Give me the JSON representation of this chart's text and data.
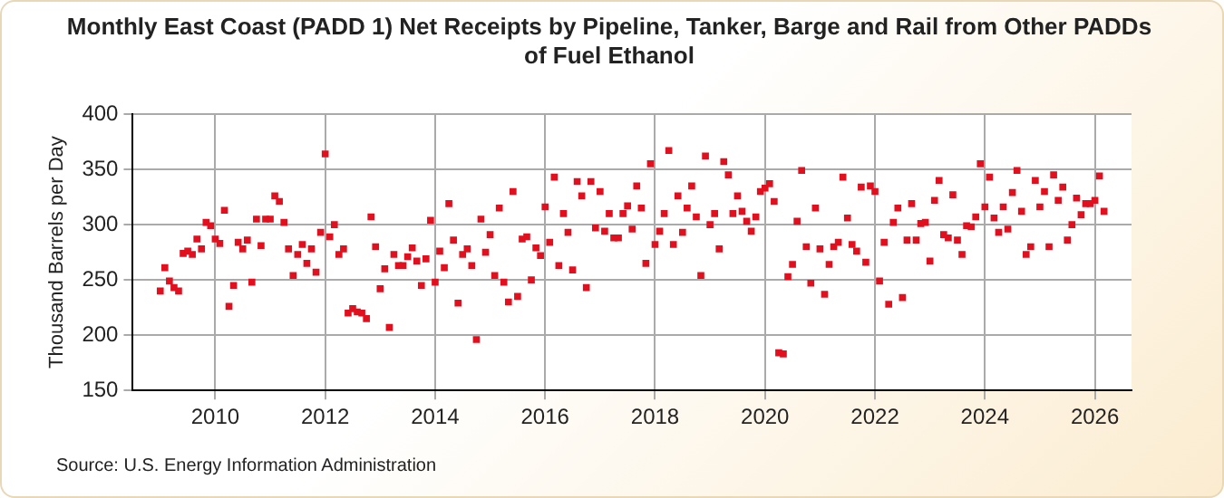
{
  "chart_data": {
    "type": "scatter",
    "title": "Monthly East Coast (PADD 1) Net Receipts by Pipeline, Tanker, Barge and Rail from Other PADDs of Fuel Ethanol",
    "ylabel": "Thousand Barrels per Day",
    "annotations": [
      "Source: U.S. Energy Information Administration"
    ],
    "x": [
      "2009-01",
      "2009-02",
      "2009-03",
      "2009-04",
      "2009-05",
      "2009-06",
      "2009-07",
      "2009-08",
      "2009-09",
      "2009-10",
      "2009-11",
      "2009-12",
      "2010-01",
      "2010-02",
      "2010-03",
      "2010-04",
      "2010-05",
      "2010-06",
      "2010-07",
      "2010-08",
      "2010-09",
      "2010-10",
      "2010-11",
      "2010-12",
      "2011-01",
      "2011-02",
      "2011-03",
      "2011-04",
      "2011-05",
      "2011-06",
      "2011-07",
      "2011-08",
      "2011-09",
      "2011-10",
      "2011-11",
      "2011-12",
      "2012-01",
      "2012-02",
      "2012-03",
      "2012-04",
      "2012-05",
      "2012-06",
      "2012-07",
      "2012-08",
      "2012-09",
      "2012-10",
      "2012-11",
      "2012-12",
      "2013-01",
      "2013-02",
      "2013-03",
      "2013-04",
      "2013-05",
      "2013-06",
      "2013-07",
      "2013-08",
      "2013-09",
      "2013-10",
      "2013-11",
      "2013-12",
      "2014-01",
      "2014-02",
      "2014-03",
      "2014-04",
      "2014-05",
      "2014-06",
      "2014-07",
      "2014-08",
      "2014-09",
      "2014-10",
      "2014-11",
      "2014-12",
      "2015-01",
      "2015-02",
      "2015-03",
      "2015-04",
      "2015-05",
      "2015-06",
      "2015-07",
      "2015-08",
      "2015-09",
      "2015-10",
      "2015-11",
      "2015-12",
      "2016-01",
      "2016-02",
      "2016-03",
      "2016-04",
      "2016-05",
      "2016-06",
      "2016-07",
      "2016-08",
      "2016-09",
      "2016-10",
      "2016-11",
      "2016-12",
      "2017-01",
      "2017-02",
      "2017-03",
      "2017-04",
      "2017-05",
      "2017-06",
      "2017-07",
      "2017-08",
      "2017-09",
      "2017-10",
      "2017-11",
      "2017-12",
      "2018-01",
      "2018-02",
      "2018-03",
      "2018-04",
      "2018-05",
      "2018-06",
      "2018-07",
      "2018-08",
      "2018-09",
      "2018-10",
      "2018-11",
      "2018-12",
      "2019-01",
      "2019-02",
      "2019-03",
      "2019-04",
      "2019-05",
      "2019-06",
      "2019-07",
      "2019-08",
      "2019-09",
      "2019-10",
      "2019-11",
      "2019-12",
      "2020-01",
      "2020-02",
      "2020-03",
      "2020-04",
      "2020-05",
      "2020-06",
      "2020-07",
      "2020-08",
      "2020-09",
      "2020-10",
      "2020-11",
      "2020-12",
      "2021-01",
      "2021-02",
      "2021-03",
      "2021-04",
      "2021-05",
      "2021-06",
      "2021-07",
      "2021-08",
      "2021-09",
      "2021-10",
      "2021-11",
      "2021-12",
      "2022-01",
      "2022-02",
      "2022-03",
      "2022-04",
      "2022-05",
      "2022-06",
      "2022-07",
      "2022-08",
      "2022-09",
      "2022-10",
      "2022-11",
      "2022-12",
      "2023-01",
      "2023-02",
      "2023-03",
      "2023-04",
      "2023-05",
      "2023-06",
      "2023-07",
      "2023-08",
      "2023-09",
      "2023-10",
      "2023-11",
      "2023-12",
      "2024-01",
      "2024-02",
      "2024-03",
      "2024-04",
      "2024-05",
      "2024-06",
      "2024-07",
      "2024-08",
      "2024-09",
      "2024-10",
      "2024-11",
      "2024-12",
      "2025-01",
      "2025-02",
      "2025-03",
      "2025-04",
      "2025-05",
      "2025-06",
      "2025-07",
      "2025-08",
      "2025-09",
      "2025-10",
      "2025-11",
      "2025-12",
      "2026-01",
      "2026-02",
      "2026-03"
    ],
    "series": [
      {
        "color": "#e0101e",
        "values": [
          240,
          261,
          249,
          243,
          240,
          274,
          276,
          273,
          287,
          278,
          302,
          299,
          287,
          283,
          313,
          226,
          245,
          284,
          278,
          286,
          248,
          305,
          281,
          305,
          305,
          326,
          321,
          302,
          278,
          254,
          273,
          282,
          265,
          278,
          257,
          293,
          364,
          289,
          300,
          273,
          278,
          220,
          224,
          221,
          220,
          215,
          307,
          280,
          242,
          260,
          207,
          273,
          263,
          263,
          271,
          279,
          267,
          245,
          269,
          304,
          248,
          276,
          261,
          319,
          286,
          229,
          273,
          278,
          263,
          196,
          305,
          275,
          291,
          254,
          315,
          248,
          230,
          330,
          235,
          287,
          289,
          250,
          279,
          272,
          316,
          284,
          343,
          263,
          310,
          293,
          259,
          339,
          326,
          243,
          339,
          297,
          330,
          294,
          310,
          288,
          288,
          310,
          317,
          296,
          335,
          315,
          265,
          355,
          282,
          294,
          310,
          367,
          282,
          326,
          293,
          315,
          335,
          307,
          254,
          362,
          300,
          310,
          278,
          357,
          345,
          310,
          326,
          312,
          303,
          294,
          307,
          330,
          333,
          337,
          321,
          184,
          183,
          253,
          264,
          303,
          349,
          280,
          247,
          315,
          278,
          237,
          264,
          280,
          284,
          343,
          306,
          282,
          276,
          334,
          266,
          335,
          330,
          249,
          284,
          228,
          302,
          315,
          234,
          286,
          319,
          286,
          301,
          302,
          267,
          322,
          340,
          291,
          288,
          327,
          286,
          273,
          299,
          298,
          307,
          355,
          316,
          343,
          306,
          293,
          316,
          296,
          329,
          349,
          312,
          273,
          280,
          340,
          316,
          330,
          280,
          345,
          322,
          334,
          286,
          300,
          324,
          309,
          319,
          319,
          322,
          344,
          312
        ]
      }
    ],
    "xlim": [
      "2008-07",
      "2026-09"
    ],
    "xticks": [
      "2010",
      "2012",
      "2014",
      "2016",
      "2018",
      "2020",
      "2022",
      "2024",
      "2026"
    ],
    "ylim": [
      150,
      400
    ],
    "yticks": [
      150,
      200,
      250,
      300,
      350,
      400
    ],
    "grid": true,
    "marker": "square",
    "legend": false
  }
}
